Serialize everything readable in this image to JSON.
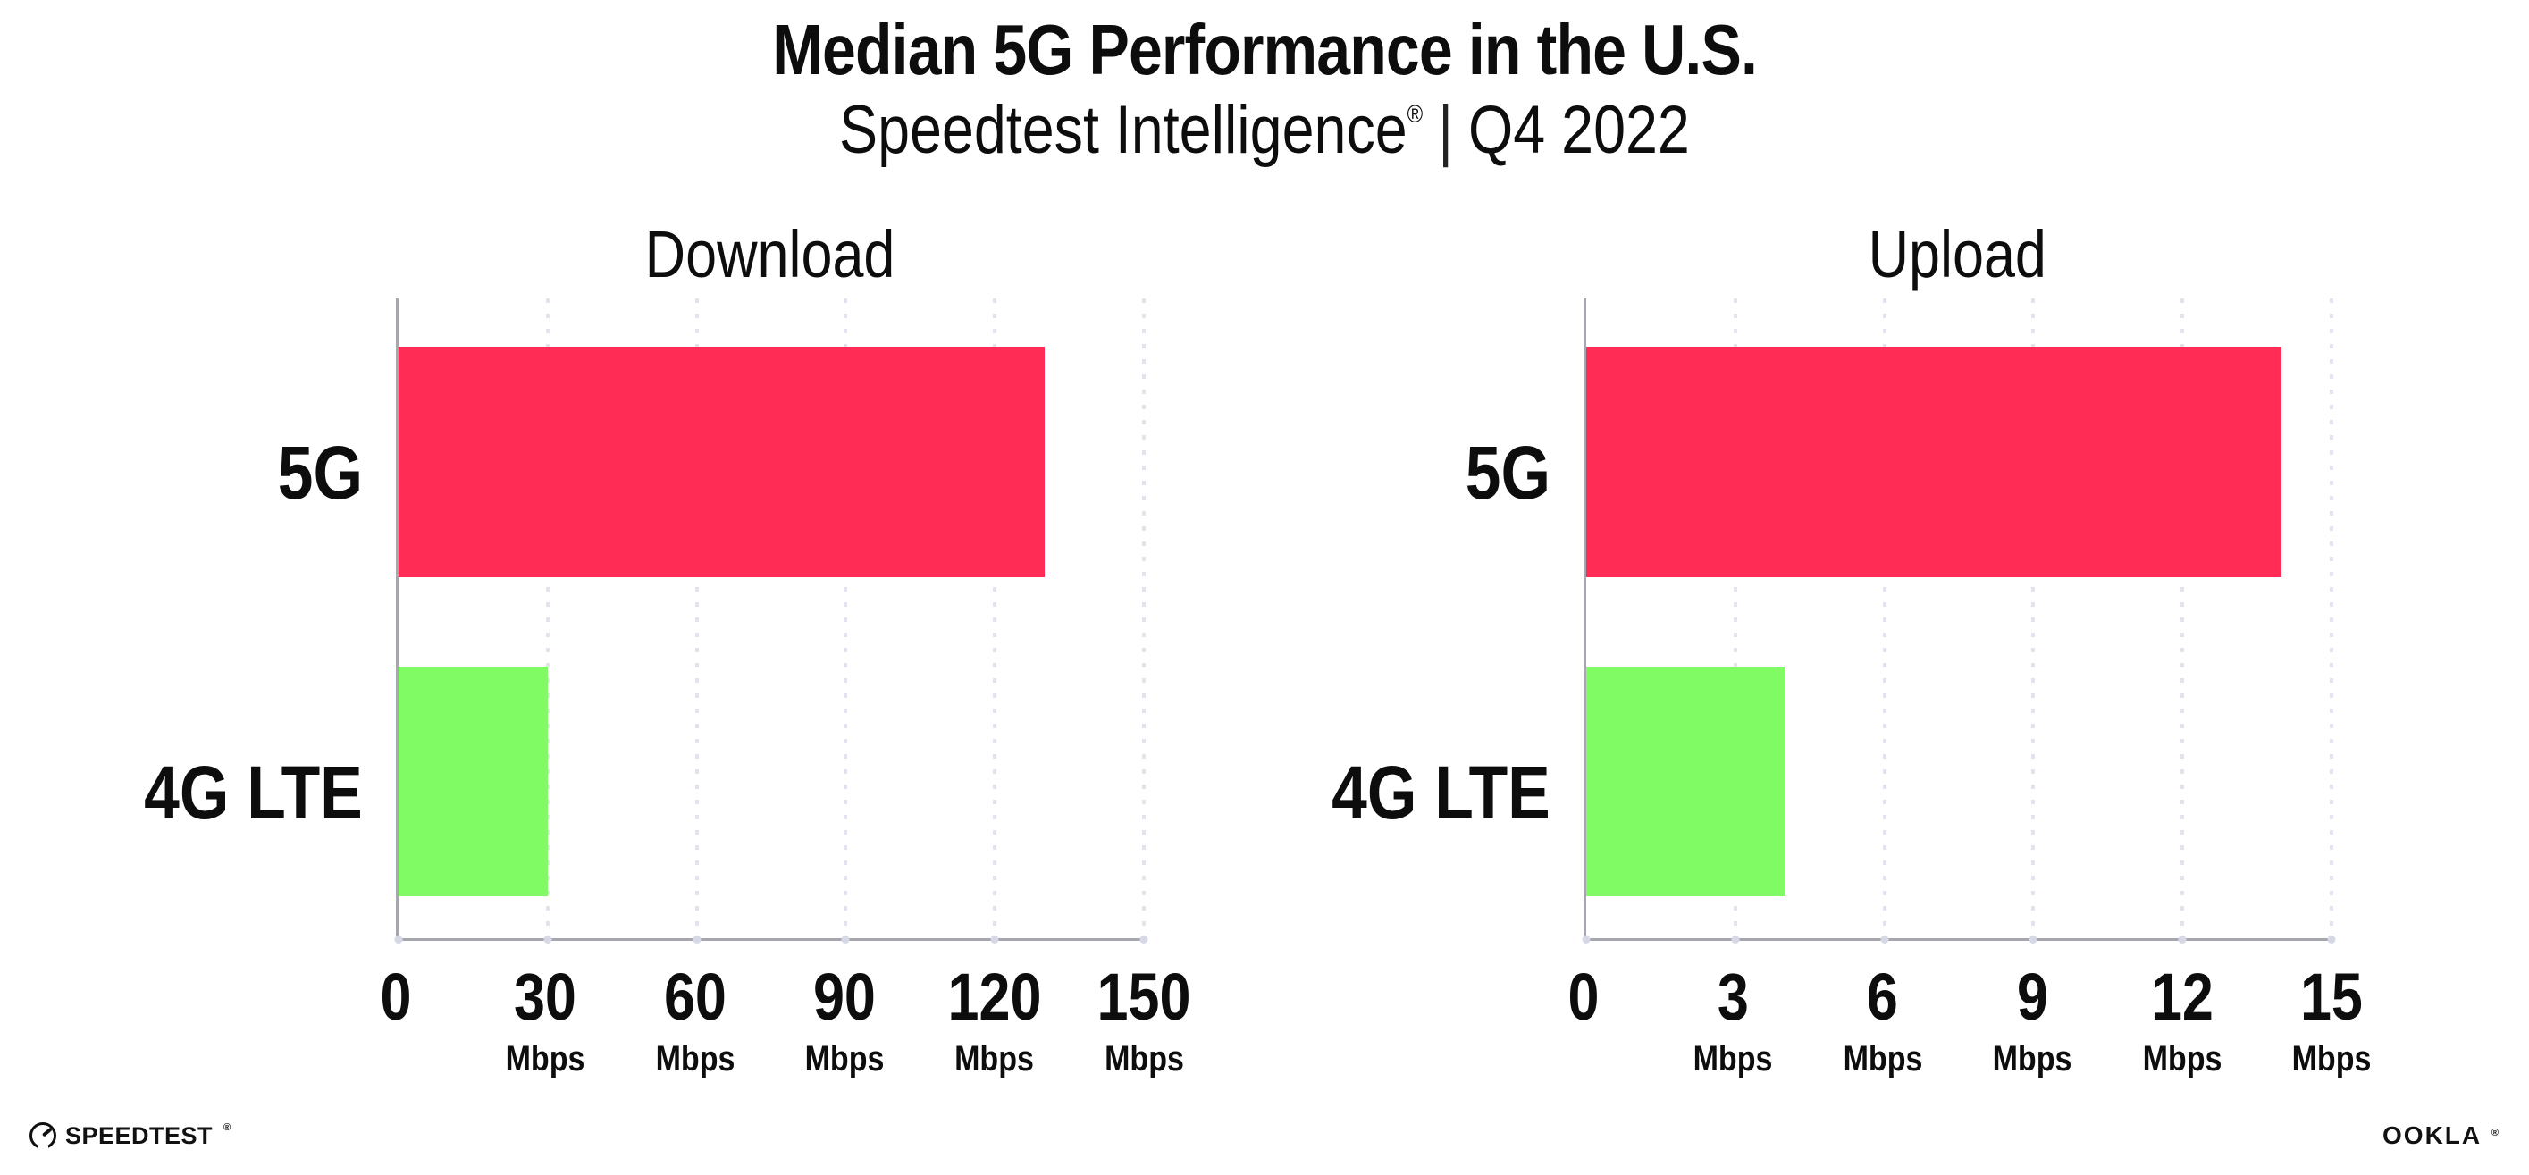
{
  "header": {
    "title": "Median 5G Performance in the U.S.",
    "subtitle_brand": "Speedtest Intelligence",
    "subtitle_reg": "®",
    "subtitle_separator": "|",
    "subtitle_period": "Q4 2022"
  },
  "chart_data": [
    {
      "id": "download",
      "type": "bar",
      "orientation": "horizontal",
      "title": "Download",
      "categories": [
        "5G",
        "4G LTE"
      ],
      "values": [
        130,
        30
      ],
      "value_unit": "Mbps",
      "xlim": [
        0,
        150
      ],
      "ticks": [
        0,
        30,
        60,
        90,
        120,
        150
      ],
      "bar_colors": [
        "#ff2d55",
        "#81fb64"
      ],
      "grid": "vertical-dotted",
      "legend": "none"
    },
    {
      "id": "upload",
      "type": "bar",
      "orientation": "horizontal",
      "title": "Upload",
      "categories": [
        "5G",
        "4G LTE"
      ],
      "values": [
        14,
        4
      ],
      "value_unit": "Mbps",
      "xlim": [
        0,
        15
      ],
      "ticks": [
        0,
        3,
        6,
        9,
        12,
        15
      ],
      "bar_colors": [
        "#ff2d55",
        "#81fb64"
      ],
      "grid": "vertical-dotted",
      "legend": "none"
    }
  ],
  "footer": {
    "speedtest_label": "SPEEDTEST",
    "speedtest_reg": "®",
    "ookla_label": "OOKLA",
    "ookla_reg": "®"
  },
  "colors": {
    "bar_5g": "#ff2d55",
    "bar_4g_lte": "#81fb64",
    "axis": "#a6a6af",
    "gridline": "#e2e3ee",
    "text": "#0d0d0d"
  }
}
